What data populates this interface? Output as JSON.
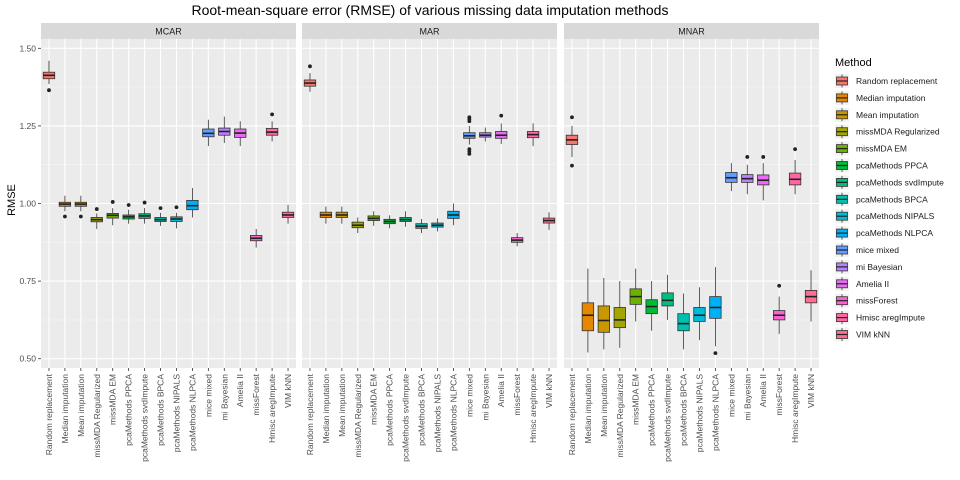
{
  "chart_data": {
    "type": "boxplot",
    "title": "Root-mean-square error (RMSE) of various missing data imputation methods",
    "ylabel": "RMSE",
    "xlabel": "",
    "ylim": [
      0.47,
      1.53
    ],
    "yticks": [
      0.5,
      0.75,
      1.0,
      1.25,
      1.5
    ],
    "ytick_labels": [
      "0.50",
      "0.75",
      "1.00",
      "1.25",
      "1.50"
    ],
    "grid": true,
    "legend_title": "Method",
    "legend_position": "right",
    "categories": [
      "Random replacement",
      "Median imputation",
      "Mean imputation",
      "missMDA Regularized",
      "missMDA EM",
      "pcaMethods PPCA",
      "pcaMethods svdImpute",
      "pcaMethods BPCA",
      "pcaMethods NIPALS",
      "pcaMethods NLPCA",
      "mice mixed",
      "mi Bayesian",
      "Amelia II",
      "missForest",
      "Hmisc aregImpute",
      "VIM kNN"
    ],
    "colors": [
      "#F8766D",
      "#E58700",
      "#C99800",
      "#A3A500",
      "#6BB100",
      "#00BA38",
      "#00BF7D",
      "#00C0AF",
      "#00BCD8",
      "#00B0F6",
      "#619CFF",
      "#B983FF",
      "#E76BF3",
      "#FD61D1",
      "#FF67A4",
      "#FF6C91"
    ],
    "panels": [
      {
        "name": "MCAR",
        "boxes": [
          {
            "min": 1.385,
            "q1": 1.402,
            "median": 1.413,
            "q3": 1.423,
            "max": 1.46,
            "outliers": [
              1.365
            ]
          },
          {
            "min": 0.975,
            "q1": 0.991,
            "median": 0.998,
            "q3": 1.004,
            "max": 1.025,
            "outliers": [
              0.958
            ]
          },
          {
            "min": 0.975,
            "q1": 0.991,
            "median": 0.998,
            "q3": 1.004,
            "max": 1.025,
            "outliers": [
              0.958
            ]
          },
          {
            "min": 0.918,
            "q1": 0.941,
            "median": 0.948,
            "q3": 0.955,
            "max": 0.968,
            "outliers": [
              0.982
            ]
          },
          {
            "min": 0.93,
            "q1": 0.953,
            "median": 0.962,
            "q3": 0.968,
            "max": 0.985,
            "outliers": [
              1.005
            ]
          },
          {
            "min": 0.935,
            "q1": 0.95,
            "median": 0.957,
            "q3": 0.963,
            "max": 0.98,
            "outliers": [
              0.995
            ]
          },
          {
            "min": 0.935,
            "q1": 0.952,
            "median": 0.96,
            "q3": 0.967,
            "max": 0.985,
            "outliers": [
              1.003
            ]
          },
          {
            "min": 0.928,
            "q1": 0.942,
            "median": 0.948,
            "q3": 0.955,
            "max": 0.97,
            "outliers": [
              0.985
            ]
          },
          {
            "min": 0.92,
            "q1": 0.942,
            "median": 0.95,
            "q3": 0.957,
            "max": 0.97,
            "outliers": [
              0.988
            ]
          },
          {
            "min": 0.955,
            "q1": 0.98,
            "median": 0.993,
            "q3": 1.01,
            "max": 1.05,
            "outliers": []
          },
          {
            "min": 1.185,
            "q1": 1.215,
            "median": 1.226,
            "q3": 1.24,
            "max": 1.27,
            "outliers": []
          },
          {
            "min": 1.195,
            "q1": 1.22,
            "median": 1.232,
            "q3": 1.243,
            "max": 1.28,
            "outliers": []
          },
          {
            "min": 1.185,
            "q1": 1.213,
            "median": 1.227,
            "q3": 1.24,
            "max": 1.265,
            "outliers": []
          },
          {
            "min": 0.858,
            "q1": 0.88,
            "median": 0.888,
            "q3": 0.897,
            "max": 0.918,
            "outliers": []
          },
          {
            "min": 1.2,
            "q1": 1.22,
            "median": 1.23,
            "q3": 1.242,
            "max": 1.265,
            "outliers": [
              1.287
            ]
          },
          {
            "min": 0.935,
            "q1": 0.955,
            "median": 0.963,
            "q3": 0.972,
            "max": 0.995,
            "outliers": []
          }
        ]
      },
      {
        "name": "MAR",
        "boxes": [
          {
            "min": 1.36,
            "q1": 1.378,
            "median": 1.388,
            "q3": 1.398,
            "max": 1.42,
            "outliers": [
              1.442
            ]
          },
          {
            "min": 0.935,
            "q1": 0.955,
            "median": 0.963,
            "q3": 0.972,
            "max": 0.99,
            "outliers": []
          },
          {
            "min": 0.935,
            "q1": 0.955,
            "median": 0.963,
            "q3": 0.972,
            "max": 0.99,
            "outliers": []
          },
          {
            "min": 0.905,
            "q1": 0.922,
            "median": 0.93,
            "q3": 0.94,
            "max": 0.955,
            "outliers": []
          },
          {
            "min": 0.928,
            "q1": 0.945,
            "median": 0.952,
            "q3": 0.96,
            "max": 0.975,
            "outliers": []
          },
          {
            "min": 0.92,
            "q1": 0.935,
            "median": 0.942,
            "q3": 0.949,
            "max": 0.962,
            "outliers": []
          },
          {
            "min": 0.925,
            "q1": 0.942,
            "median": 0.948,
            "q3": 0.955,
            "max": 0.975,
            "outliers": []
          },
          {
            "min": 0.905,
            "q1": 0.92,
            "median": 0.927,
            "q3": 0.935,
            "max": 0.95,
            "outliers": []
          },
          {
            "min": 0.91,
            "q1": 0.924,
            "median": 0.93,
            "q3": 0.937,
            "max": 0.952,
            "outliers": []
          },
          {
            "min": 0.93,
            "q1": 0.952,
            "median": 0.963,
            "q3": 0.975,
            "max": 1.0,
            "outliers": []
          },
          {
            "min": 1.19,
            "q1": 1.21,
            "median": 1.218,
            "q3": 1.228,
            "max": 1.25,
            "outliers": [
              1.278,
              1.272,
              1.265,
              1.175,
              1.168,
              1.16
            ]
          },
          {
            "min": 1.2,
            "q1": 1.214,
            "median": 1.22,
            "q3": 1.228,
            "max": 1.245,
            "outliers": []
          },
          {
            "min": 1.192,
            "q1": 1.21,
            "median": 1.22,
            "q3": 1.232,
            "max": 1.258,
            "outliers": [
              1.283
            ]
          },
          {
            "min": 0.862,
            "q1": 0.875,
            "median": 0.882,
            "q3": 0.89,
            "max": 0.905,
            "outliers": []
          },
          {
            "min": 1.185,
            "q1": 1.212,
            "median": 1.222,
            "q3": 1.232,
            "max": 1.258,
            "outliers": []
          },
          {
            "min": 0.915,
            "q1": 0.937,
            "median": 0.945,
            "q3": 0.953,
            "max": 0.972,
            "outliers": []
          }
        ]
      },
      {
        "name": "MNAR",
        "boxes": [
          {
            "min": 1.15,
            "q1": 1.19,
            "median": 1.205,
            "q3": 1.22,
            "max": 1.25,
            "outliers": [
              1.278,
              1.122
            ]
          },
          {
            "min": 0.52,
            "q1": 0.59,
            "median": 0.64,
            "q3": 0.68,
            "max": 0.79,
            "outliers": []
          },
          {
            "min": 0.53,
            "q1": 0.585,
            "median": 0.623,
            "q3": 0.67,
            "max": 0.76,
            "outliers": []
          },
          {
            "min": 0.535,
            "q1": 0.6,
            "median": 0.625,
            "q3": 0.665,
            "max": 0.75,
            "outliers": []
          },
          {
            "min": 0.62,
            "q1": 0.675,
            "median": 0.7,
            "q3": 0.725,
            "max": 0.79,
            "outliers": []
          },
          {
            "min": 0.59,
            "q1": 0.645,
            "median": 0.668,
            "q3": 0.69,
            "max": 0.75,
            "outliers": []
          },
          {
            "min": 0.625,
            "q1": 0.67,
            "median": 0.688,
            "q3": 0.712,
            "max": 0.77,
            "outliers": []
          },
          {
            "min": 0.53,
            "q1": 0.59,
            "median": 0.613,
            "q3": 0.645,
            "max": 0.71,
            "outliers": []
          },
          {
            "min": 0.56,
            "q1": 0.62,
            "median": 0.64,
            "q3": 0.665,
            "max": 0.73,
            "outliers": []
          },
          {
            "min": 0.54,
            "q1": 0.63,
            "median": 0.665,
            "q3": 0.7,
            "max": 0.795,
            "outliers": [
              0.518
            ]
          },
          {
            "min": 1.04,
            "q1": 1.068,
            "median": 1.083,
            "q3": 1.1,
            "max": 1.13,
            "outliers": []
          },
          {
            "min": 1.03,
            "q1": 1.068,
            "median": 1.08,
            "q3": 1.093,
            "max": 1.125,
            "outliers": [
              1.15
            ]
          },
          {
            "min": 1.01,
            "q1": 1.06,
            "median": 1.075,
            "q3": 1.092,
            "max": 1.13,
            "outliers": [
              1.15
            ]
          },
          {
            "min": 0.58,
            "q1": 0.625,
            "median": 0.64,
            "q3": 0.655,
            "max": 0.7,
            "outliers": [
              0.735
            ]
          },
          {
            "min": 1.03,
            "q1": 1.06,
            "median": 1.078,
            "q3": 1.098,
            "max": 1.14,
            "outliers": [
              1.175
            ]
          },
          {
            "min": 0.62,
            "q1": 0.68,
            "median": 0.7,
            "q3": 0.72,
            "max": 0.785,
            "outliers": []
          }
        ]
      }
    ]
  }
}
